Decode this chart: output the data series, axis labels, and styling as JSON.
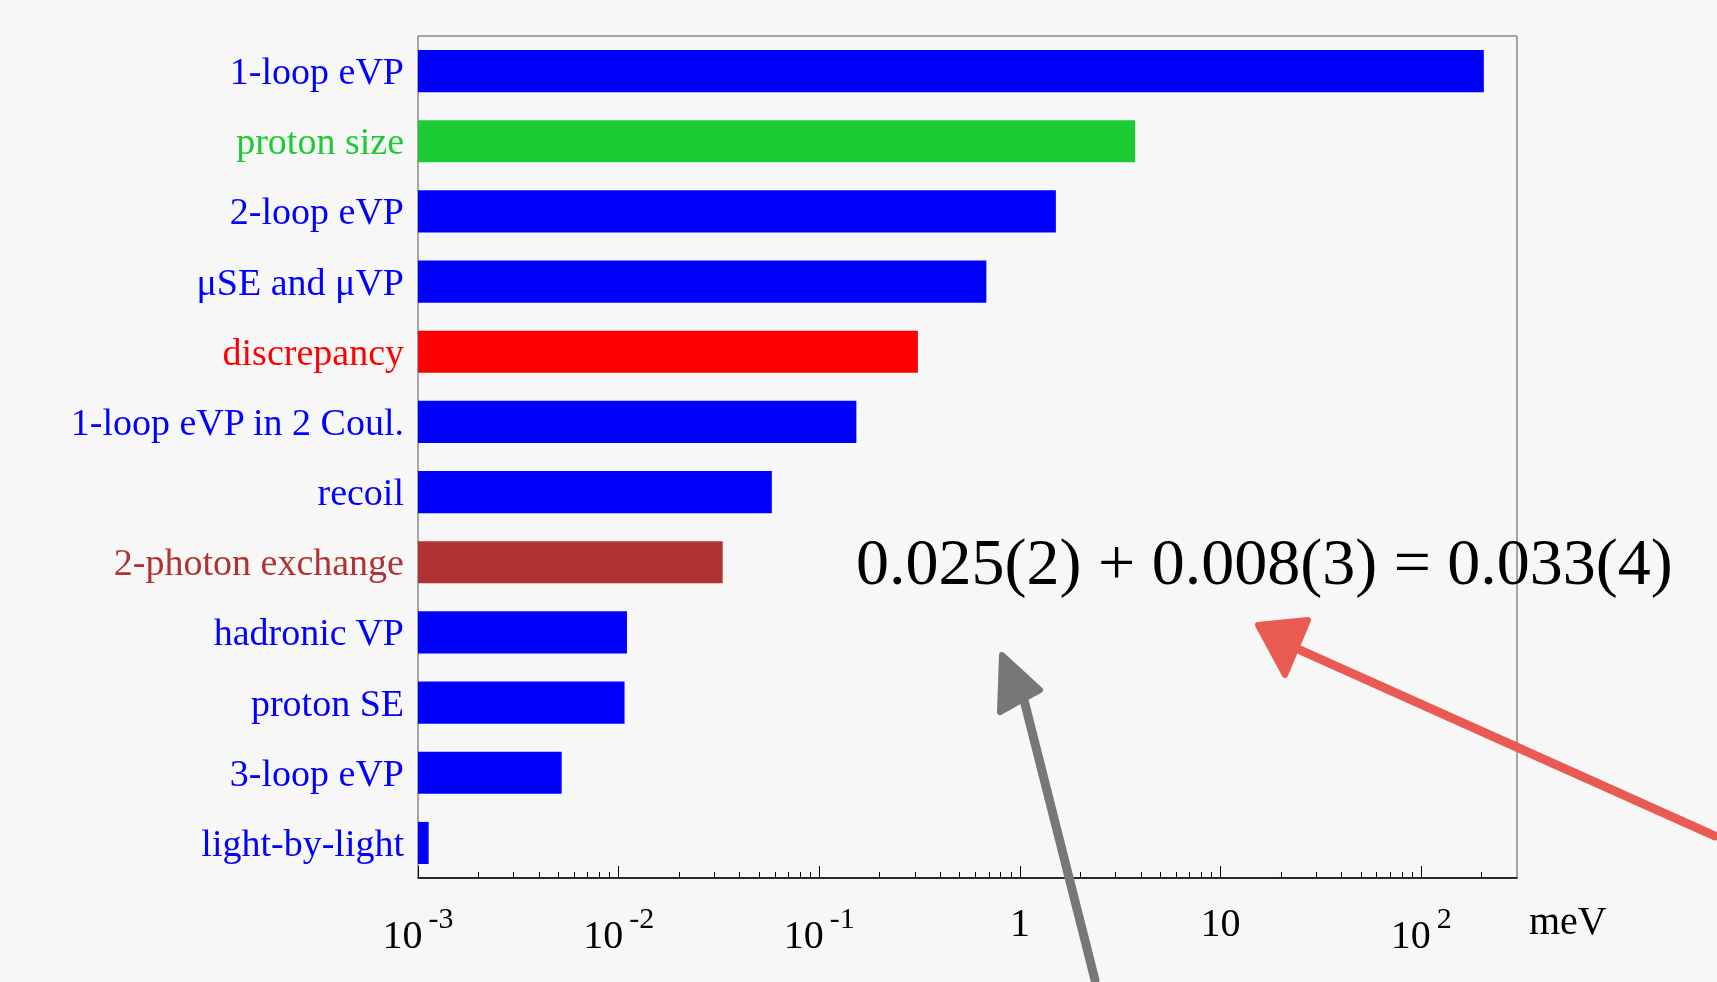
{
  "chart_data": {
    "type": "bar",
    "orientation": "horizontal",
    "log": "x",
    "categories": [
      "1-loop eVP",
      "proton size",
      "2-loop eVP",
      "μSE and μVP",
      "discrepancy",
      "1-loop eVP in 2 Coul.",
      "recoil",
      "2-photon exchange",
      "hadronic VP",
      "proton SE",
      "3-loop eVP",
      "light-by-light"
    ],
    "values": [
      205,
      3.75,
      1.51,
      0.68,
      0.31,
      0.153,
      0.058,
      0.033,
      0.011,
      0.0107,
      0.0052,
      0.00113
    ],
    "colors": [
      "#0000ff",
      "#1ccb34",
      "#0000ff",
      "#0000ff",
      "#ff0000",
      "#0000ff",
      "#0000ff",
      "#b03333",
      "#0000ff",
      "#0000ff",
      "#0000ff",
      "#0000ff"
    ],
    "xlim": [
      0.001,
      300
    ],
    "xticks": [
      {
        "value": 0.001,
        "label": "10$^{-3}$"
      },
      {
        "value": 0.01,
        "label": "10$^{-2}$"
      },
      {
        "value": 0.1,
        "label": "10$^{-1}$"
      },
      1,
      10,
      {
        "value": 100,
        "label": "10$^{2}$"
      }
    ],
    "xlabel": "meV",
    "annotations": [
      "0.025(2) + 0.008(3) = 0.033(4)"
    ]
  }
}
